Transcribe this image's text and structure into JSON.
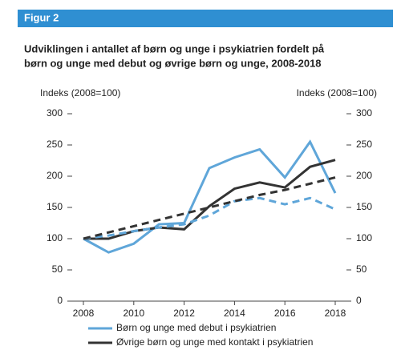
{
  "chart_data": {
    "type": "line",
    "header": "Figur 2",
    "title": [
      "Udviklingen i antallet af børn og unge i psykiatrien fordelt på",
      "børn og unge med debut og øvrige børn og unge, 2008-2018"
    ],
    "ylabel": "Indeks (2008=100)",
    "y2label": "Indeks (2008=100)",
    "x": [
      2008,
      2009,
      2010,
      2011,
      2012,
      2013,
      2014,
      2015,
      2016,
      2017,
      2018
    ],
    "xlim": [
      2008,
      2018
    ],
    "xticks": [
      2008,
      2010,
      2012,
      2014,
      2016,
      2018
    ],
    "ylim": [
      0,
      300
    ],
    "yticks": [
      0,
      50,
      100,
      150,
      200,
      250,
      300
    ],
    "y2lim": [
      0,
      300
    ],
    "y2ticks": [
      0,
      50,
      100,
      150,
      200,
      250,
      300
    ],
    "series": [
      {
        "name": "Børn og unge med debut i psykiatrien",
        "color": "#5fa6d9",
        "dashed": false,
        "values": [
          100,
          78,
          92,
          123,
          125,
          213,
          230,
          243,
          198,
          255,
          173
        ]
      },
      {
        "name": "Øvrige børn og unge med kontakt i psykiatrien",
        "color": "#333333",
        "dashed": false,
        "values": [
          100,
          100,
          112,
          118,
          115,
          152,
          180,
          190,
          182,
          215,
          226
        ]
      },
      {
        "color": "#5fa6d9",
        "dashed": true,
        "values": [
          100,
          105,
          112,
          118,
          123,
          137,
          160,
          165,
          155,
          165,
          147
        ]
      },
      {
        "color": "#333333",
        "dashed": true,
        "values": [
          100,
          110,
          120,
          130,
          140,
          150,
          160,
          170,
          178,
          188,
          198
        ]
      }
    ]
  }
}
